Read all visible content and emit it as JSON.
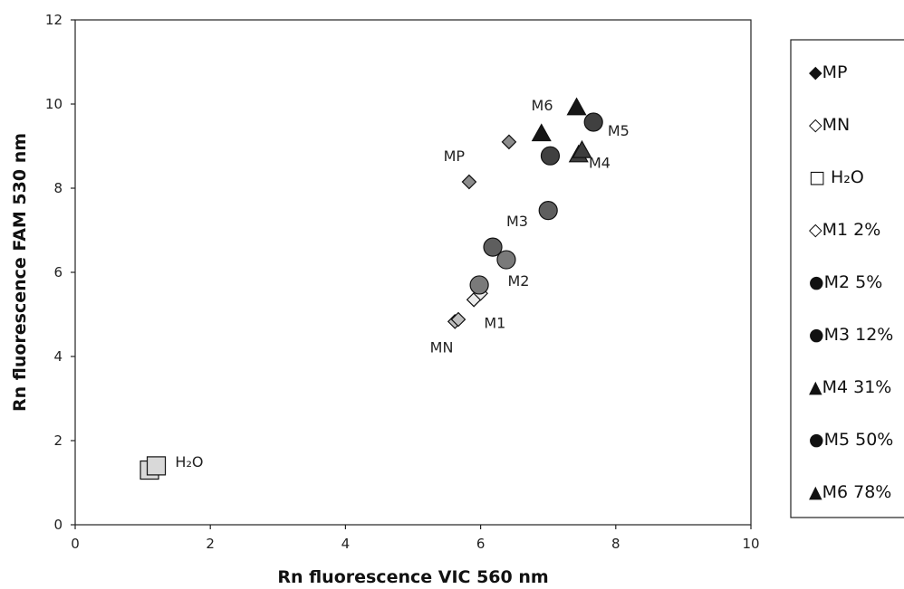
{
  "chart_data": {
    "type": "scatter",
    "xlabel": "Rn fluorescence VIC 560 nm",
    "ylabel": "Rn fluorescence FAM 530 nm",
    "xlim": [
      0,
      10
    ],
    "ylim": [
      0,
      12
    ],
    "xticks": [
      0,
      2,
      4,
      6,
      8,
      10
    ],
    "yticks": [
      0,
      2,
      4,
      6,
      8,
      10,
      12
    ],
    "grid": false,
    "legend_position": "right",
    "series": [
      {
        "name": "MP",
        "label_text": "◆MP",
        "marker": "diamond",
        "color": "#8c8c8c",
        "points": [
          {
            "x": 5.83,
            "y": 8.15
          },
          {
            "x": 6.42,
            "y": 9.1
          }
        ]
      },
      {
        "name": "MN",
        "label_text": "◇MN",
        "marker": "diamond",
        "color": "#bdbdbd",
        "points": [
          {
            "x": 5.62,
            "y": 4.83
          },
          {
            "x": 5.67,
            "y": 4.88
          }
        ]
      },
      {
        "name": "H2O",
        "label_text": "□ H₂O",
        "marker": "square",
        "color": "#d9d9d9",
        "points": [
          {
            "x": 1.1,
            "y": 1.3
          },
          {
            "x": 1.2,
            "y": 1.4
          }
        ]
      },
      {
        "name": "M1 2%",
        "label_text": "◇M1 2%",
        "marker": "diamond",
        "color": "#ececec",
        "points": [
          {
            "x": 5.9,
            "y": 5.35
          },
          {
            "x": 6.0,
            "y": 5.5
          }
        ]
      },
      {
        "name": "M2 5%",
        "label_text": "●M2 5%",
        "marker": "circle",
        "color": "#7a7a7a",
        "points": [
          {
            "x": 5.98,
            "y": 5.7
          },
          {
            "x": 6.38,
            "y": 6.3
          }
        ]
      },
      {
        "name": "M3 12%",
        "label_text": "●M3 12%",
        "marker": "circle",
        "color": "#5e5e5e",
        "points": [
          {
            "x": 6.18,
            "y": 6.6
          },
          {
            "x": 7.0,
            "y": 7.47
          }
        ]
      },
      {
        "name": "M4 31%",
        "label_text": "▲M4 31%",
        "marker": "triangle",
        "color": "#3d3d3d",
        "points": [
          {
            "x": 7.45,
            "y": 8.8
          },
          {
            "x": 7.5,
            "y": 8.9
          }
        ]
      },
      {
        "name": "M5 50%",
        "label_text": "●M5 50%",
        "marker": "circle",
        "color": "#404040",
        "points": [
          {
            "x": 7.03,
            "y": 8.77
          },
          {
            "x": 7.67,
            "y": 9.57
          }
        ]
      },
      {
        "name": "M6 78%",
        "label_text": "▲M6 78%",
        "marker": "triangle",
        "color": "#161616",
        "points": [
          {
            "x": 6.9,
            "y": 9.3
          },
          {
            "x": 7.42,
            "y": 9.92
          }
        ]
      }
    ],
    "annotations": [
      {
        "text": "MP",
        "x": 5.45,
        "y": 8.65
      },
      {
        "text": "MN",
        "x": 5.25,
        "y": 4.1
      },
      {
        "text": "H₂O",
        "x": 1.48,
        "y": 1.38
      },
      {
        "text": "M1",
        "x": 6.05,
        "y": 4.68
      },
      {
        "text": "M2",
        "x": 6.4,
        "y": 5.68
      },
      {
        "text": "M3",
        "x": 6.38,
        "y": 7.1
      },
      {
        "text": "M4",
        "x": 7.6,
        "y": 8.48
      },
      {
        "text": "M5",
        "x": 7.88,
        "y": 9.25
      },
      {
        "text": "M6",
        "x": 6.75,
        "y": 9.85
      }
    ]
  }
}
